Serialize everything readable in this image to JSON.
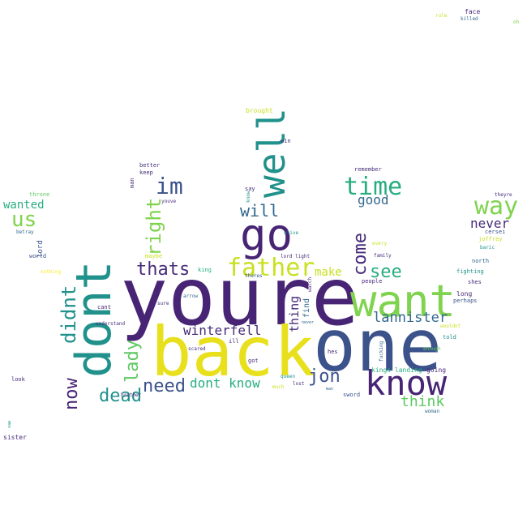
{
  "palette": {
    "dark_purple": "#482475",
    "indigo": "#3b528b",
    "blue": "#31688e",
    "teal": "#21918c",
    "green_teal": "#27ad81",
    "green": "#5ec962",
    "lime": "#addc30",
    "yellow": "#fde725"
  },
  "words": [
    {
      "text": "youre",
      "color": "#482475"
    },
    {
      "text": "back",
      "color": "#e8e01c"
    },
    {
      "text": "one",
      "color": "#3b528b"
    },
    {
      "text": "dont",
      "color": "#21918c"
    },
    {
      "text": "want",
      "color": "#7fd34e"
    },
    {
      "text": "know",
      "color": "#482475"
    },
    {
      "text": "go",
      "color": "#482475"
    },
    {
      "text": "well",
      "color": "#21918c"
    },
    {
      "text": "father",
      "color": "#c8e020"
    },
    {
      "text": "time",
      "color": "#27ad81"
    },
    {
      "text": "way",
      "color": "#7fd34e"
    },
    {
      "text": "im",
      "color": "#3b528b"
    },
    {
      "text": "right",
      "color": "#7fd34e"
    },
    {
      "text": "us",
      "color": "#7fd34e"
    },
    {
      "text": "will",
      "color": "#31688e"
    },
    {
      "text": "thats",
      "color": "#472c7a"
    },
    {
      "text": "come",
      "color": "#472c7a"
    },
    {
      "text": "see",
      "color": "#27ad81"
    },
    {
      "text": "didnt",
      "color": "#21918c"
    },
    {
      "text": "now",
      "color": "#482475"
    },
    {
      "text": "dead",
      "color": "#21918c"
    },
    {
      "text": "lady",
      "color": "#5ec962"
    },
    {
      "text": "need",
      "color": "#3b528b"
    },
    {
      "text": "jon",
      "color": "#3b528b"
    },
    {
      "text": "think",
      "color": "#5ec962"
    },
    {
      "text": "lannister",
      "color": "#31688e"
    },
    {
      "text": "winterfell",
      "color": "#472c7a"
    },
    {
      "text": "dont know",
      "color": "#27ad81"
    },
    {
      "text": "good",
      "color": "#31688e"
    },
    {
      "text": "never",
      "color": "#472c7a"
    },
    {
      "text": "make",
      "color": "#c8e020"
    },
    {
      "text": "thing",
      "color": "#472c7a"
    },
    {
      "text": "wanted",
      "color": "#27ad81"
    },
    {
      "text": "find",
      "color": "#31688e"
    },
    {
      "text": "lord",
      "color": "#3b528b"
    },
    {
      "text": "sister",
      "color": "#472c7a"
    },
    {
      "text": "brought",
      "color": "#c8e020"
    },
    {
      "text": "better",
      "color": "#472c7a"
    },
    {
      "text": "keep",
      "color": "#472c7a"
    },
    {
      "text": "man",
      "color": "#472c7a"
    },
    {
      "text": "throne",
      "color": "#5ec962"
    },
    {
      "text": "betray",
      "color": "#31688e"
    },
    {
      "text": "world",
      "color": "#3b528b"
    },
    {
      "text": "nothing",
      "color": "#fde725"
    },
    {
      "text": "maybe",
      "color": "#c8e020"
    },
    {
      "text": "youve",
      "color": "#472c7a"
    },
    {
      "text": "say",
      "color": "#472c7a"
    },
    {
      "text": "know",
      "color": "#21918c"
    },
    {
      "text": "win",
      "color": "#472c7a"
    },
    {
      "text": "alive",
      "color": "#21918c"
    },
    {
      "text": "remember",
      "color": "#472c7a"
    },
    {
      "text": "lord light",
      "color": "#472c7a"
    },
    {
      "text": "every",
      "color": "#c8e020"
    },
    {
      "text": "family",
      "color": "#472c7a"
    },
    {
      "text": "theyre",
      "color": "#472c7a"
    },
    {
      "text": "cersei",
      "color": "#3b528b"
    },
    {
      "text": "joffrey",
      "color": "#c8e020"
    },
    {
      "text": "baric",
      "color": "#21918c"
    },
    {
      "text": "fighting",
      "color": "#21918c"
    },
    {
      "text": "north",
      "color": "#31688e"
    },
    {
      "text": "shes",
      "color": "#472c7a"
    },
    {
      "text": "long",
      "color": "#472c7a"
    },
    {
      "text": "perhaps",
      "color": "#3b528b"
    },
    {
      "text": "wouldnt",
      "color": "#c8e020"
    },
    {
      "text": "told",
      "color": "#21918c"
    },
    {
      "text": "enough",
      "color": "#5ec962"
    },
    {
      "text": "going",
      "color": "#472c7a"
    },
    {
      "text": "kings landing",
      "color": "#27ad81"
    },
    {
      "text": "people",
      "color": "#472c7a"
    },
    {
      "text": "sword",
      "color": "#3b528b"
    },
    {
      "text": "woman",
      "color": "#31688e"
    },
    {
      "text": "fucking",
      "color": "#31688e"
    },
    {
      "text": "hes",
      "color": "#472c7a"
    },
    {
      "text": "lost",
      "color": "#472c7a"
    },
    {
      "text": "queen",
      "color": "#21918c"
    },
    {
      "text": "much",
      "color": "#c8e020"
    },
    {
      "text": "man",
      "color": "#31688e"
    },
    {
      "text": "got",
      "color": "#472c7a"
    },
    {
      "text": "ill",
      "color": "#472c7a"
    },
    {
      "text": "scared",
      "color": "#472c7a"
    },
    {
      "text": "sure",
      "color": "#472c7a"
    },
    {
      "text": "arrow",
      "color": "#31688e"
    },
    {
      "text": "king",
      "color": "#27ad81"
    },
    {
      "text": "theres",
      "color": "#3b528b"
    },
    {
      "text": "watch",
      "color": "#472c7a"
    },
    {
      "text": "never",
      "color": "#31688e"
    },
    {
      "text": "cant",
      "color": "#472c7a"
    },
    {
      "text": "understand",
      "color": "#472c7a"
    },
    {
      "text": "brother",
      "color": "#472c7a"
    },
    {
      "text": "look",
      "color": "#472c7a"
    },
    {
      "text": "face",
      "color": "#472c7a"
    },
    {
      "text": "killed",
      "color": "#31688e"
    },
    {
      "text": "rule",
      "color": "#c8e020"
    },
    {
      "text": "oh",
      "color": "#7fd34e"
    },
    {
      "text": "saw",
      "color": "#21918c"
    }
  ]
}
